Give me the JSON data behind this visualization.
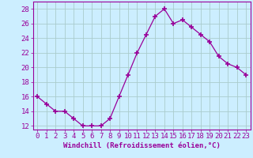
{
  "x": [
    0,
    1,
    2,
    3,
    4,
    5,
    6,
    7,
    8,
    9,
    10,
    11,
    12,
    13,
    14,
    15,
    16,
    17,
    18,
    19,
    20,
    21,
    22,
    23
  ],
  "y": [
    16,
    15,
    14,
    14,
    13,
    12,
    12,
    12,
    13,
    16,
    19,
    22,
    24.5,
    27,
    28,
    26,
    26.5,
    25.5,
    24.5,
    23.5,
    21.5,
    20.5,
    20,
    19
  ],
  "line_color": "#990099",
  "marker": "+",
  "marker_size": 4,
  "bg_color": "#cceeff",
  "grid_color": "#aacccc",
  "xlabel": "Windchill (Refroidissement éolien,°C)",
  "xlabel_color": "#990099",
  "xlim": [
    -0.5,
    23.5
  ],
  "ylim": [
    11.5,
    29
  ],
  "yticks": [
    12,
    14,
    16,
    18,
    20,
    22,
    24,
    26,
    28
  ],
  "xticks": [
    0,
    1,
    2,
    3,
    4,
    5,
    6,
    7,
    8,
    9,
    10,
    11,
    12,
    13,
    14,
    15,
    16,
    17,
    18,
    19,
    20,
    21,
    22,
    23
  ],
  "tick_color": "#990099",
  "axis_color": "#990099",
  "font_size": 6.5
}
